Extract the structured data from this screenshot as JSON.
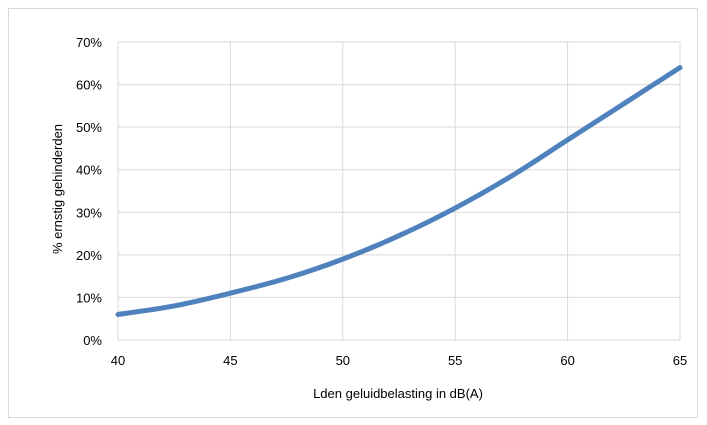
{
  "chart_data": {
    "type": "line",
    "xlabel": "Lden geluidbelasting in dB(A)",
    "ylabel": "% ernstig gehinderden",
    "xlim": [
      40,
      65
    ],
    "ylim": [
      0,
      0.7
    ],
    "x_ticks": [
      "40",
      "45",
      "50",
      "55",
      "60",
      "65"
    ],
    "y_ticks": [
      "0%",
      "10%",
      "20%",
      "30%",
      "40%",
      "50%",
      "60%",
      "70%"
    ],
    "grid": true,
    "legend": "none",
    "series": [
      {
        "color": "#4f81bd",
        "x": [
          40,
          42.5,
          45,
          47.5,
          50,
          52.5,
          55,
          57.5,
          60,
          62.5,
          65
        ],
        "y": [
          0.06,
          0.08,
          0.11,
          0.145,
          0.19,
          0.245,
          0.31,
          0.385,
          0.47,
          0.555,
          0.64
        ]
      }
    ]
  }
}
